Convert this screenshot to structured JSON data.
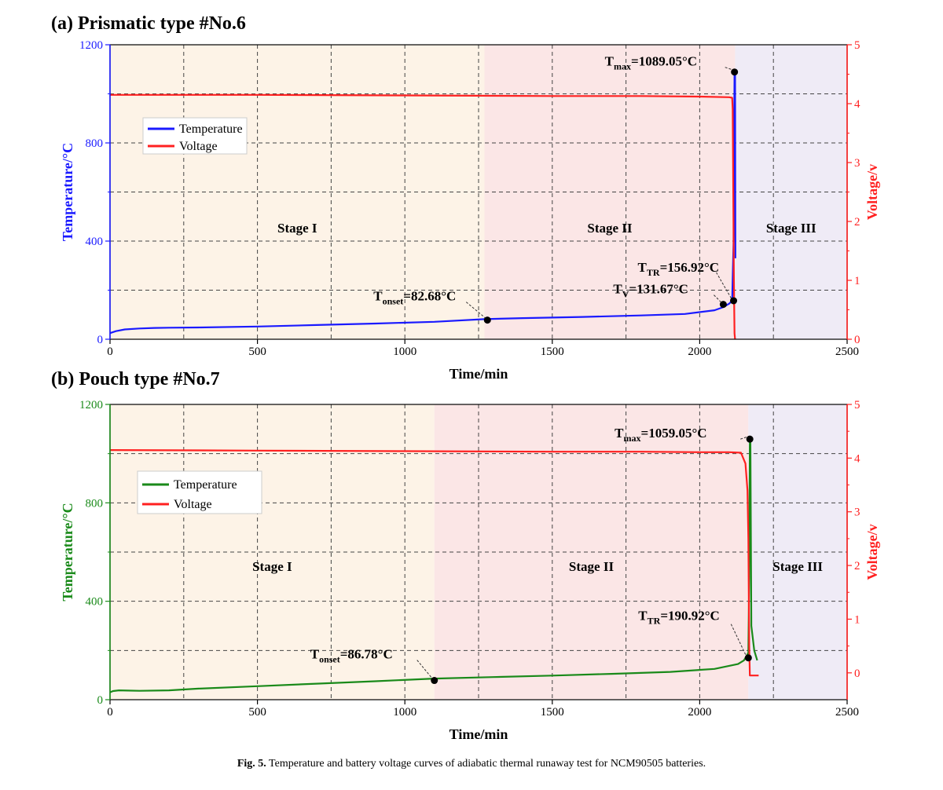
{
  "caption": {
    "label": "Fig. 5.",
    "text": "Temperature and battery voltage curves of adiabatic thermal runaway test for NCM90505 batteries."
  },
  "chart_data": [
    {
      "type": "line",
      "title": "(a) Prismatic type #No.6",
      "xlabel": "Time/min",
      "ylabel": "Temperature/°C",
      "y2label": "Voltage/v",
      "xlim": [
        0,
        2500
      ],
      "ylim": [
        0,
        1200
      ],
      "y2lim": [
        0,
        5
      ],
      "xticks": [
        0,
        500,
        1000,
        1500,
        2000,
        2500
      ],
      "yticks": [
        0,
        400,
        800,
        1200
      ],
      "y2ticks": [
        0,
        1,
        2,
        3,
        4,
        5
      ],
      "grid": true,
      "legend_position": "top-left",
      "colors": {
        "temperature": "#1a1aff",
        "voltage": "#ff2020",
        "left_axis": "#1a1aff",
        "right_axis": "#ff2020"
      },
      "stages": [
        {
          "label": "Stage I",
          "x0": 0,
          "x1": 1270,
          "color": "#fdf3e7"
        },
        {
          "label": "Stage II",
          "x0": 1270,
          "x1": 2120,
          "color": "#fbe6e6"
        },
        {
          "label": "Stage III",
          "x0": 2120,
          "x1": 2500,
          "color": "#efebf6"
        }
      ],
      "series": [
        {
          "name": "Temperature",
          "axis": "left",
          "color": "#1a1aff",
          "x": [
            0,
            20,
            50,
            100,
            150,
            200,
            300,
            500,
            700,
            900,
            1100,
            1270,
            1400,
            1600,
            1800,
            1950,
            2050,
            2080,
            2100,
            2110,
            2115,
            2118,
            2120,
            2121
          ],
          "y": [
            25,
            33,
            40,
            44,
            46,
            47,
            48,
            52,
            58,
            64,
            71,
            82,
            86,
            91,
            97,
            103,
            118,
            131,
            145,
            157,
            400,
            1089,
            1089,
            330
          ]
        },
        {
          "name": "Voltage",
          "axis": "right",
          "color": "#ff2020",
          "x": [
            0,
            500,
            1000,
            1500,
            1800,
            2000,
            2100,
            2110,
            2112,
            2116,
            2118,
            2120
          ],
          "y": [
            4.15,
            4.15,
            4.14,
            4.13,
            4.13,
            4.12,
            4.11,
            4.1,
            3.9,
            1.0,
            0.1,
            0.0
          ]
        }
      ],
      "annotations": [
        {
          "main": "T",
          "sub": "max",
          "value": "=1089.05°C",
          "x": 2118,
          "y": 1089
        },
        {
          "main": "T",
          "sub": "TR",
          "value": "=156.92°C",
          "x": 2115,
          "y": 157
        },
        {
          "main": "T",
          "sub": "V",
          "value": "=131.67°C",
          "x": 2080,
          "y": 142
        },
        {
          "main": "T",
          "sub": "onset",
          "value": "=82.68°C",
          "x": 1280,
          "y": 78
        }
      ]
    },
    {
      "type": "line",
      "title": "(b) Pouch type #No.7",
      "xlabel": "Time/min",
      "ylabel": "Temperature/°C",
      "y2label": "Voltage/v",
      "xlim": [
        0,
        2500
      ],
      "ylim": [
        0,
        1200
      ],
      "y2lim": [
        -0.5,
        5
      ],
      "xticks": [
        0,
        500,
        1000,
        1500,
        2000,
        2500
      ],
      "yticks": [
        0,
        400,
        800,
        1200
      ],
      "y2ticks": [
        0,
        1,
        2,
        3,
        4,
        5
      ],
      "grid": true,
      "legend_position": "top-left",
      "colors": {
        "temperature": "#1a8a1a",
        "voltage": "#ff2020",
        "left_axis": "#1a8a1a",
        "right_axis": "#ff2020"
      },
      "stages": [
        {
          "label": "Stage I",
          "x0": 0,
          "x1": 1100,
          "color": "#fdf3e7"
        },
        {
          "label": "Stage II",
          "x0": 1100,
          "x1": 2165,
          "color": "#fbe6e6"
        },
        {
          "label": "Stage III",
          "x0": 2165,
          "x1": 2500,
          "color": "#efebf6"
        }
      ],
      "series": [
        {
          "name": "Temperature",
          "axis": "left",
          "color": "#1a8a1a",
          "x": [
            0,
            10,
            30,
            60,
            100,
            200,
            300,
            500,
            700,
            900,
            1100,
            1300,
            1500,
            1700,
            1900,
            2050,
            2130,
            2150,
            2160,
            2165,
            2168,
            2170,
            2172,
            2175,
            2185,
            2195
          ],
          "y": [
            30,
            35,
            38,
            37,
            36,
            38,
            45,
            55,
            65,
            75,
            86,
            92,
            98,
            105,
            113,
            125,
            145,
            160,
            180,
            191,
            500,
            1059,
            1059,
            300,
            200,
            160
          ]
        },
        {
          "name": "Voltage",
          "axis": "right",
          "color": "#ff2020",
          "x": [
            0,
            500,
            1000,
            1500,
            1800,
            2000,
            2100,
            2140,
            2155,
            2162,
            2165,
            2168,
            2170,
            2172,
            2200
          ],
          "y": [
            4.15,
            4.14,
            4.13,
            4.12,
            4.12,
            4.11,
            4.11,
            4.1,
            3.9,
            3.4,
            2.5,
            0.5,
            -0.05,
            -0.05,
            -0.05
          ]
        }
      ],
      "annotations": [
        {
          "main": "T",
          "sub": "max",
          "value": "=1059.05°C",
          "x": 2170,
          "y": 1059
        },
        {
          "main": "T",
          "sub": "TR",
          "value": "=190.92°C",
          "x": 2165,
          "y": 170
        },
        {
          "main": "T",
          "sub": "onset",
          "value": "=86.78°C",
          "x": 1100,
          "y": 78
        }
      ]
    }
  ]
}
